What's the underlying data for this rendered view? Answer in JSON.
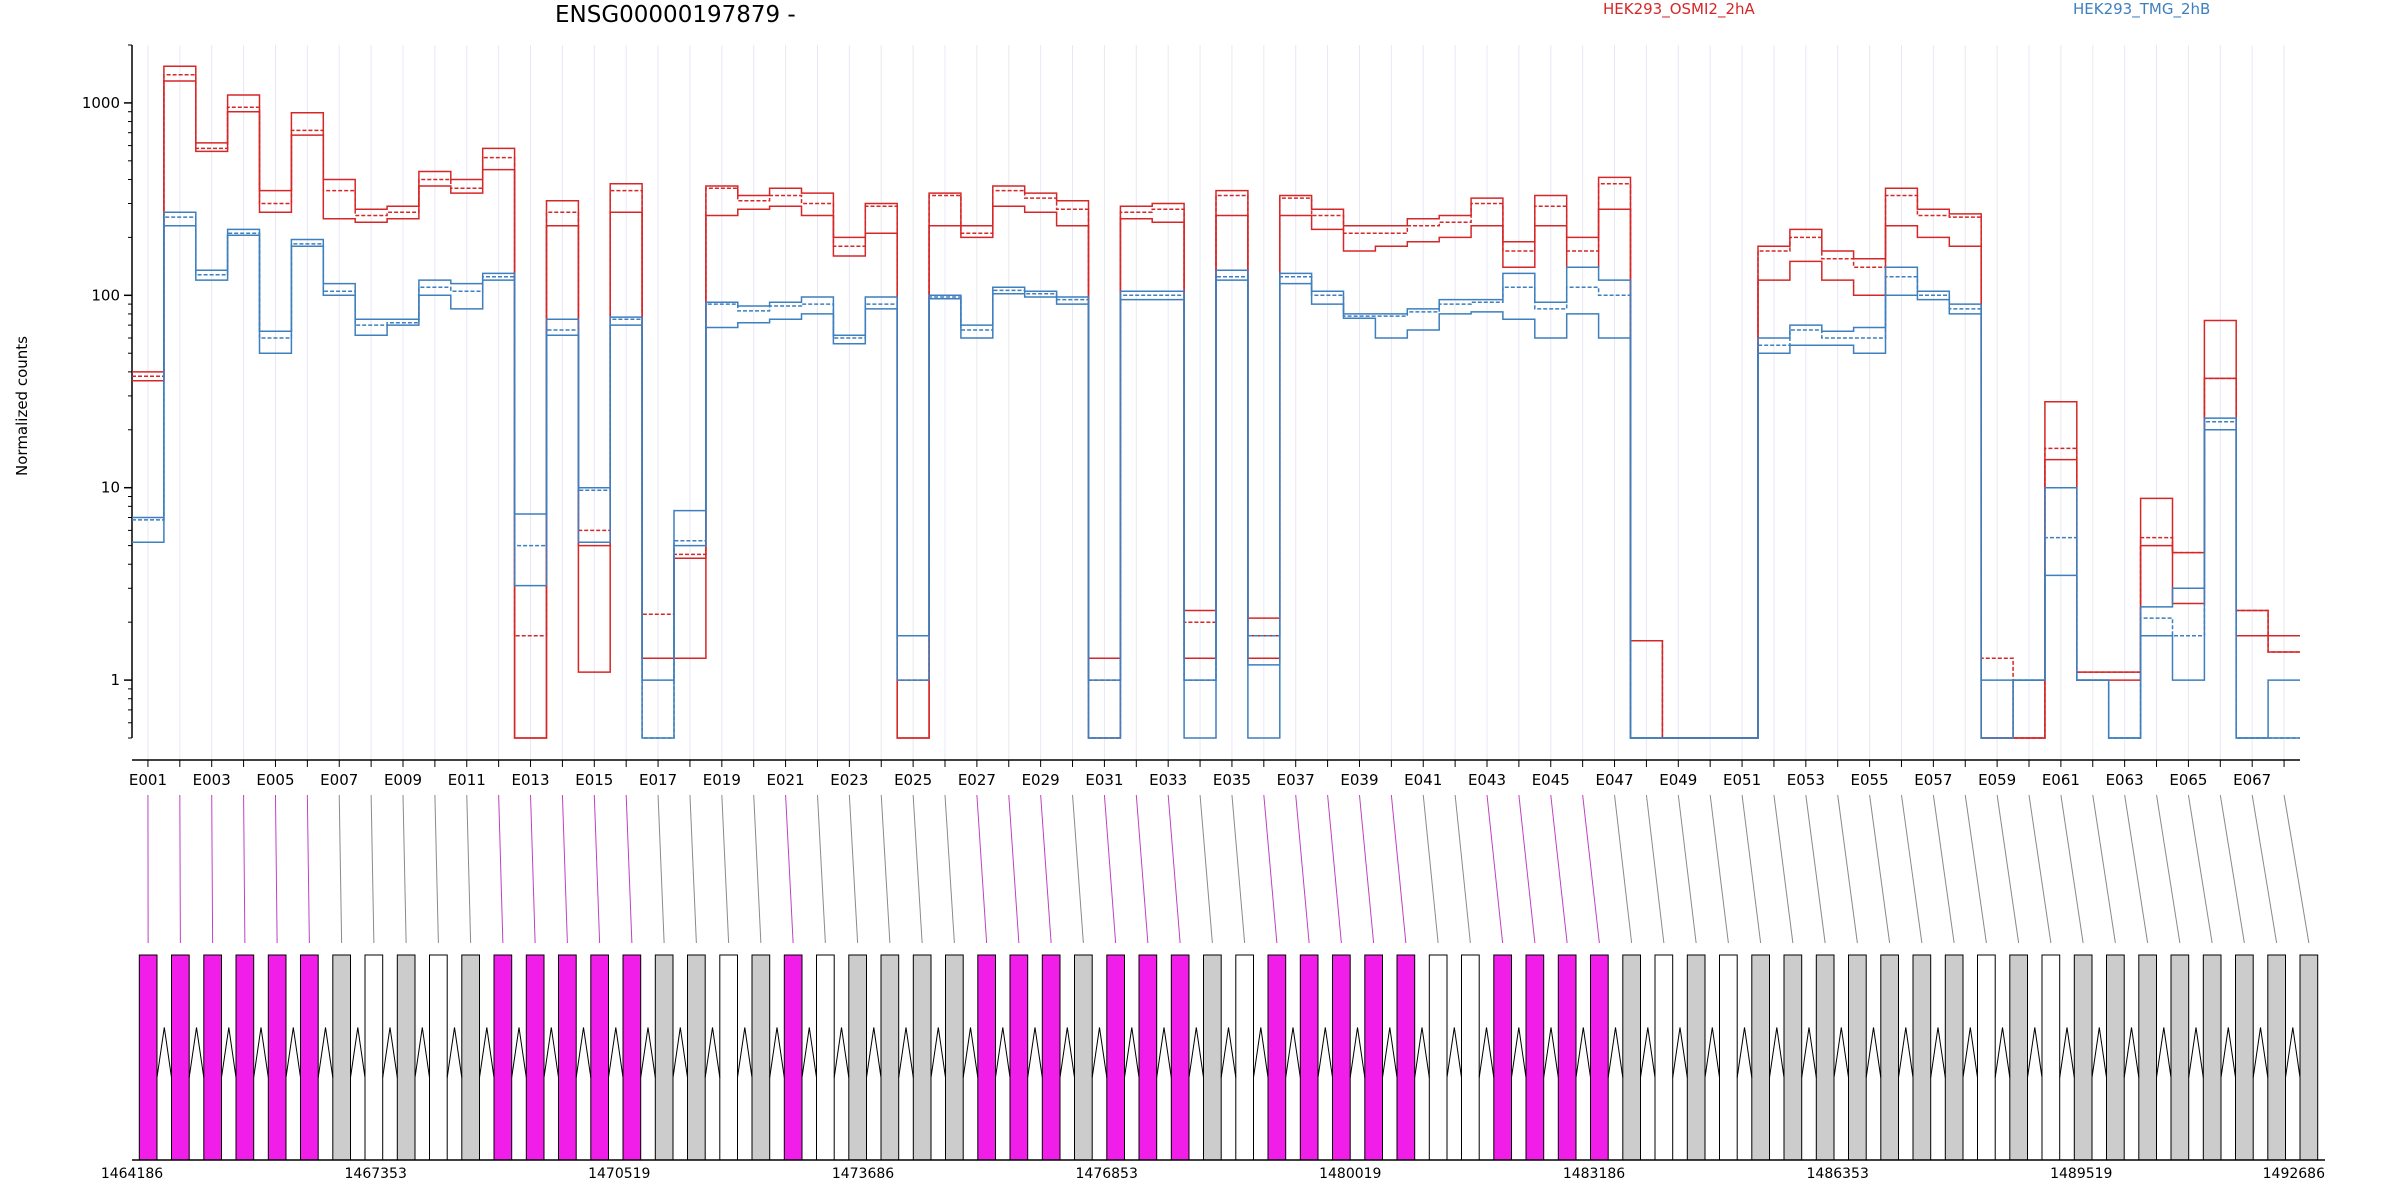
{
  "chart_data": {
    "type": "line",
    "title": "ENSG00000197879 -",
    "ylabel": "Normalized counts",
    "yscale": "log",
    "ylim": [
      0.5,
      2000
    ],
    "yticks": [
      1,
      10,
      100,
      1000
    ],
    "ytick_labels": [
      "1",
      "10",
      "100",
      "1000"
    ],
    "exons": [
      "E001",
      "E002",
      "E003",
      "E004",
      "E005",
      "E006",
      "E007",
      "E008",
      "E009",
      "E010",
      "E011",
      "E012",
      "E013",
      "E014",
      "E015",
      "E016",
      "E017",
      "E018",
      "E019",
      "E020",
      "E021",
      "E022",
      "E023",
      "E024",
      "E025",
      "E026",
      "E027",
      "E028",
      "E029",
      "E030",
      "E031",
      "E032",
      "E033",
      "E034",
      "E035",
      "E036",
      "E037",
      "E038",
      "E039",
      "E040",
      "E041",
      "E042",
      "E043",
      "E044",
      "E045",
      "E046",
      "E047",
      "E048",
      "E049",
      "E050",
      "E051",
      "E052",
      "E053",
      "E054",
      "E055",
      "E056",
      "E057",
      "E058",
      "E059",
      "E060",
      "E061",
      "E062",
      "E063",
      "E064",
      "E065",
      "E066",
      "E067",
      "E068"
    ],
    "xtick_labels": [
      "E001",
      "E003",
      "E005",
      "E007",
      "E009",
      "E011",
      "E013",
      "E015",
      "E017",
      "E019",
      "E021",
      "E023",
      "E025",
      "E027",
      "E029",
      "E031",
      "E033",
      "E035",
      "E037",
      "E039",
      "E041",
      "E043",
      "E045",
      "E047",
      "E049",
      "E051",
      "E053",
      "E055",
      "E057",
      "E059",
      "E061",
      "E063",
      "E065",
      "E067"
    ],
    "series": [
      {
        "name": "HEK293_OSMI2_2hA",
        "color": "#d62728",
        "values": [
          40,
          1550,
          620,
          1100,
          350,
          890,
          400,
          280,
          290,
          440,
          400,
          580,
          0.5,
          310,
          1.1,
          380,
          1.3,
          1.3,
          370,
          330,
          360,
          340,
          200,
          300,
          0.5,
          340,
          230,
          370,
          340,
          310,
          1.3,
          290,
          300,
          2.3,
          350,
          2.1,
          330,
          280,
          230,
          230,
          250,
          260,
          320,
          190,
          330,
          200,
          410,
          1.6,
          0.5,
          0.5,
          0.5,
          180,
          220,
          170,
          155,
          360,
          280,
          265,
          0.5,
          0.5,
          28,
          1.1,
          1.1,
          8.8,
          4.6,
          74,
          2.3,
          1.7
        ]
      },
      {
        "name": "HEK293_OSMI2_2hA",
        "color": "#d62728",
        "values": [
          38,
          1400,
          580,
          950,
          300,
          720,
          350,
          260,
          270,
          400,
          360,
          520,
          1.7,
          270,
          6,
          350,
          2.2,
          4.5,
          360,
          310,
          330,
          300,
          180,
          290,
          1,
          330,
          210,
          350,
          320,
          280,
          1,
          270,
          280,
          2.0,
          330,
          1.7,
          320,
          260,
          210,
          210,
          230,
          240,
          300,
          170,
          290,
          170,
          380,
          1.6,
          0.5,
          0.5,
          0.5,
          170,
          200,
          155,
          140,
          330,
          260,
          255,
          1.3,
          0.5,
          16,
          1.1,
          1.1,
          5.5,
          4.6,
          37,
          2.3,
          1.4
        ]
      },
      {
        "name": "HEK293_OSMI2_2hA",
        "color": "#d62728",
        "values": [
          36,
          1300,
          560,
          900,
          270,
          680,
          250,
          240,
          250,
          370,
          340,
          450,
          0.5,
          230,
          5,
          270,
          1.3,
          4.3,
          260,
          280,
          290,
          260,
          160,
          210,
          0.5,
          230,
          200,
          290,
          270,
          230,
          0.5,
          250,
          240,
          1.3,
          260,
          1.3,
          260,
          220,
          170,
          180,
          190,
          200,
          230,
          140,
          230,
          140,
          280,
          0.5,
          0.5,
          0.5,
          0.5,
          120,
          150,
          120,
          100,
          230,
          200,
          180,
          0.5,
          0.5,
          14,
          1,
          1,
          5.0,
          2.5,
          37,
          1.7,
          1.4
        ]
      },
      {
        "name": "HEK293_TMG_2hB",
        "color": "#3d7fbf",
        "values": [
          7,
          270,
          135,
          220,
          65,
          195,
          115,
          75,
          75,
          120,
          115,
          130,
          7.3,
          75,
          10,
          77,
          1,
          7.6,
          92,
          88,
          92,
          98,
          62,
          98,
          1.7,
          100,
          70,
          110,
          105,
          98,
          1,
          105,
          105,
          1,
          135,
          1.2,
          130,
          105,
          80,
          80,
          85,
          95,
          95,
          130,
          92,
          140,
          120,
          0.5,
          0.5,
          0.5,
          0.5,
          60,
          70,
          65,
          68,
          140,
          105,
          90,
          1,
          1,
          10,
          1,
          0.5,
          2.4,
          3,
          23,
          0.5,
          1
        ]
      },
      {
        "name": "HEK293_TMG_2hB",
        "color": "#3d7fbf",
        "values": [
          6.8,
          255,
          128,
          210,
          60,
          185,
          105,
          70,
          72,
          110,
          105,
          125,
          5,
          66,
          9.7,
          75,
          0.5,
          5.3,
          90,
          83,
          88,
          90,
          60,
          90,
          1.7,
          98,
          66,
          106,
          102,
          95,
          0.5,
          100,
          100,
          1,
          125,
          1.7,
          125,
          100,
          78,
          78,
          82,
          90,
          92,
          110,
          85,
          110,
          100,
          0.5,
          0.5,
          0.5,
          0.5,
          55,
          66,
          60,
          60,
          125,
          100,
          85,
          0.5,
          1,
          5.5,
          1,
          0.5,
          2.1,
          1.7,
          22,
          0.5,
          0.5
        ]
      },
      {
        "name": "HEK293_TMG_2hB",
        "color": "#3d7fbf",
        "values": [
          5.2,
          230,
          120,
          205,
          50,
          180,
          100,
          62,
          70,
          100,
          85,
          120,
          3.1,
          62,
          5.2,
          70,
          0.5,
          5,
          68,
          72,
          75,
          80,
          56,
          85,
          1,
          96,
          60,
          102,
          98,
          90,
          0.5,
          95,
          95,
          0.5,
          120,
          0.5,
          115,
          90,
          76,
          60,
          66,
          80,
          82,
          75,
          60,
          80,
          60,
          0.5,
          0.5,
          0.5,
          0.5,
          50,
          55,
          55,
          50,
          100,
          95,
          80,
          0.5,
          1,
          3.5,
          1,
          0.5,
          1.7,
          1,
          20,
          0.5,
          0.5
        ]
      }
    ],
    "legend": [
      {
        "label": "HEK293_OSMI2_2hA",
        "color": "#d62728"
      },
      {
        "label": "HEK293_TMG_2hB",
        "color": "#3d7fbf"
      }
    ],
    "legend_placement": "top",
    "gene_model": {
      "coordinate_labels": [
        "1464186",
        "1467353",
        "1470519",
        "1473686",
        "1476853",
        "1480019",
        "1483186",
        "1486353",
        "1489519",
        "1492686"
      ],
      "exon_colors": {
        "significant": "#f01ee8",
        "normal": "#cccccc",
        "unexpressed": "#ffffff"
      },
      "exon_status": [
        "sig",
        "sig",
        "sig",
        "sig",
        "sig",
        "sig",
        "normal",
        "unexpressed",
        "normal",
        "unexpressed",
        "normal",
        "sig",
        "sig",
        "sig",
        "sig",
        "sig",
        "normal",
        "normal",
        "unexpressed",
        "normal",
        "sig",
        "unexpressed",
        "normal",
        "normal",
        "normal",
        "normal",
        "sig",
        "sig",
        "sig",
        "normal",
        "sig",
        "sig",
        "sig",
        "normal",
        "unexpressed",
        "sig",
        "sig",
        "sig",
        "sig",
        "sig",
        "unexpressed",
        "unexpressed",
        "sig",
        "sig",
        "sig",
        "sig",
        "normal",
        "unexpressed",
        "normal",
        "unexpressed",
        "normal",
        "normal",
        "normal",
        "normal",
        "normal",
        "normal",
        "normal",
        "unexpressed",
        "normal",
        "unexpressed",
        "normal",
        "normal",
        "normal",
        "normal",
        "normal",
        "normal",
        "normal",
        "normal"
      ]
    }
  }
}
